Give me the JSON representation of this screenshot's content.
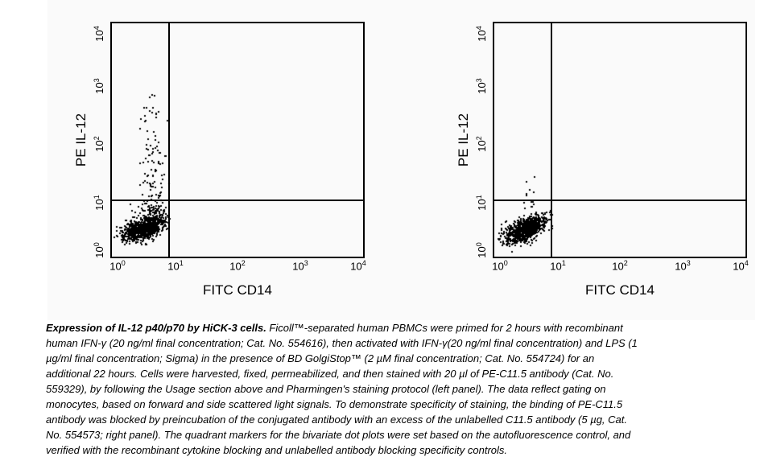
{
  "figure": {
    "background": "#fafafa",
    "dot_color": "#000000",
    "frame_color": "#000000"
  },
  "caption": {
    "title": "Expression of IL-12 p40/p70 by HiCK-3 cells.",
    "lines": [
      " Ficoll™-separated human PBMCs were primed for 2 hours with recombinant",
      "human IFN-γ (20 ng/ml final concentration; Cat. No. 554616), then activated with IFN-γ(20 ng/ml final concentration) and LPS (1",
      "µg/ml final concentration; Sigma) in the presence of BD GolgiStop™ (2 µM final concentration; Cat. No. 554724) for an",
      "additional 22 hours. Cells were harvested, fixed, permeabilized, and then stained with 20 µl of PE-C11.5 antibody (Cat. No.",
      "559329), by following the Usage section above and Pharmingen's staining protocol (left panel). The data reflect gating on",
      "monocytes, based on forward and side scattered light signals. To demonstrate specificity of staining, the binding of PE-C11.5",
      "antibody was blocked by preincubation of the conjugated antibody with an excess of the unlabelled C11.5 antibody (5 µg, Cat.",
      "No. 554573; right panel). The quadrant markers for the bivariate dot plots were set based on the autofluorescence control, and",
      "verified with the recombinant cytokine blocking and unlabelled antibody blocking specificity controls."
    ]
  },
  "chart_data": [
    {
      "type": "scatter",
      "panel": "left",
      "subtype": "flow-cytometry-dot-plot",
      "xlabel": "FITC CD14",
      "ylabel": "PE IL-12",
      "x_scale": "log10",
      "y_scale": "log10",
      "xlim_exp": [
        0,
        4
      ],
      "ylim_exp": [
        0,
        4
      ],
      "tick_base": "10",
      "x_tick_exponents": [
        0,
        1,
        2,
        3,
        4
      ],
      "y_tick_exponents": [
        0,
        1,
        2,
        3,
        4
      ],
      "grid": false,
      "quadrant_markers_log10": {
        "x": 0.91,
        "y": 0.97
      },
      "seed": 7,
      "populations": [
        {
          "name": "monocyte-autofluorescence-cluster",
          "kind": "gaussian",
          "n": 900,
          "cx": 0.52,
          "cy": 0.5,
          "sx": 0.17,
          "sy": 0.115,
          "corr": 0.55,
          "clip": [
            0.03,
            0.93,
            0.1,
            0.93
          ]
        },
        {
          "name": "il12-positive-tail",
          "kind": "tail",
          "n": 135,
          "cx": 0.64,
          "sx": 0.11,
          "y_min": 0.78,
          "y_max": 2.85,
          "power": 1.9,
          "clip_x": [
            0.12,
            0.95
          ]
        }
      ]
    },
    {
      "type": "scatter",
      "panel": "right",
      "subtype": "flow-cytometry-dot-plot",
      "xlabel": "FITC CD14",
      "ylabel": "PE IL-12",
      "x_scale": "log10",
      "y_scale": "log10",
      "xlim_exp": [
        0,
        4
      ],
      "ylim_exp": [
        0,
        4
      ],
      "tick_base": "10",
      "x_tick_exponents": [
        0,
        1,
        2,
        3,
        4
      ],
      "y_tick_exponents": [
        0,
        1,
        2,
        3,
        4
      ],
      "grid": false,
      "quadrant_markers_log10": {
        "x": 0.91,
        "y": 0.97
      },
      "seed": 13,
      "populations": [
        {
          "name": "monocyte-blocked-cluster",
          "kind": "gaussian",
          "n": 950,
          "cx": 0.5,
          "cy": 0.47,
          "sx": 0.165,
          "sy": 0.115,
          "corr": 0.6,
          "clip": [
            0.03,
            0.93,
            0.08,
            0.93
          ]
        },
        {
          "name": "residual-positive-dots",
          "kind": "tail",
          "n": 13,
          "cx": 0.56,
          "sx": 0.1,
          "y_min": 0.82,
          "y_max": 1.38,
          "power": 1.4,
          "clip_x": [
            0.2,
            0.82
          ]
        }
      ]
    }
  ]
}
